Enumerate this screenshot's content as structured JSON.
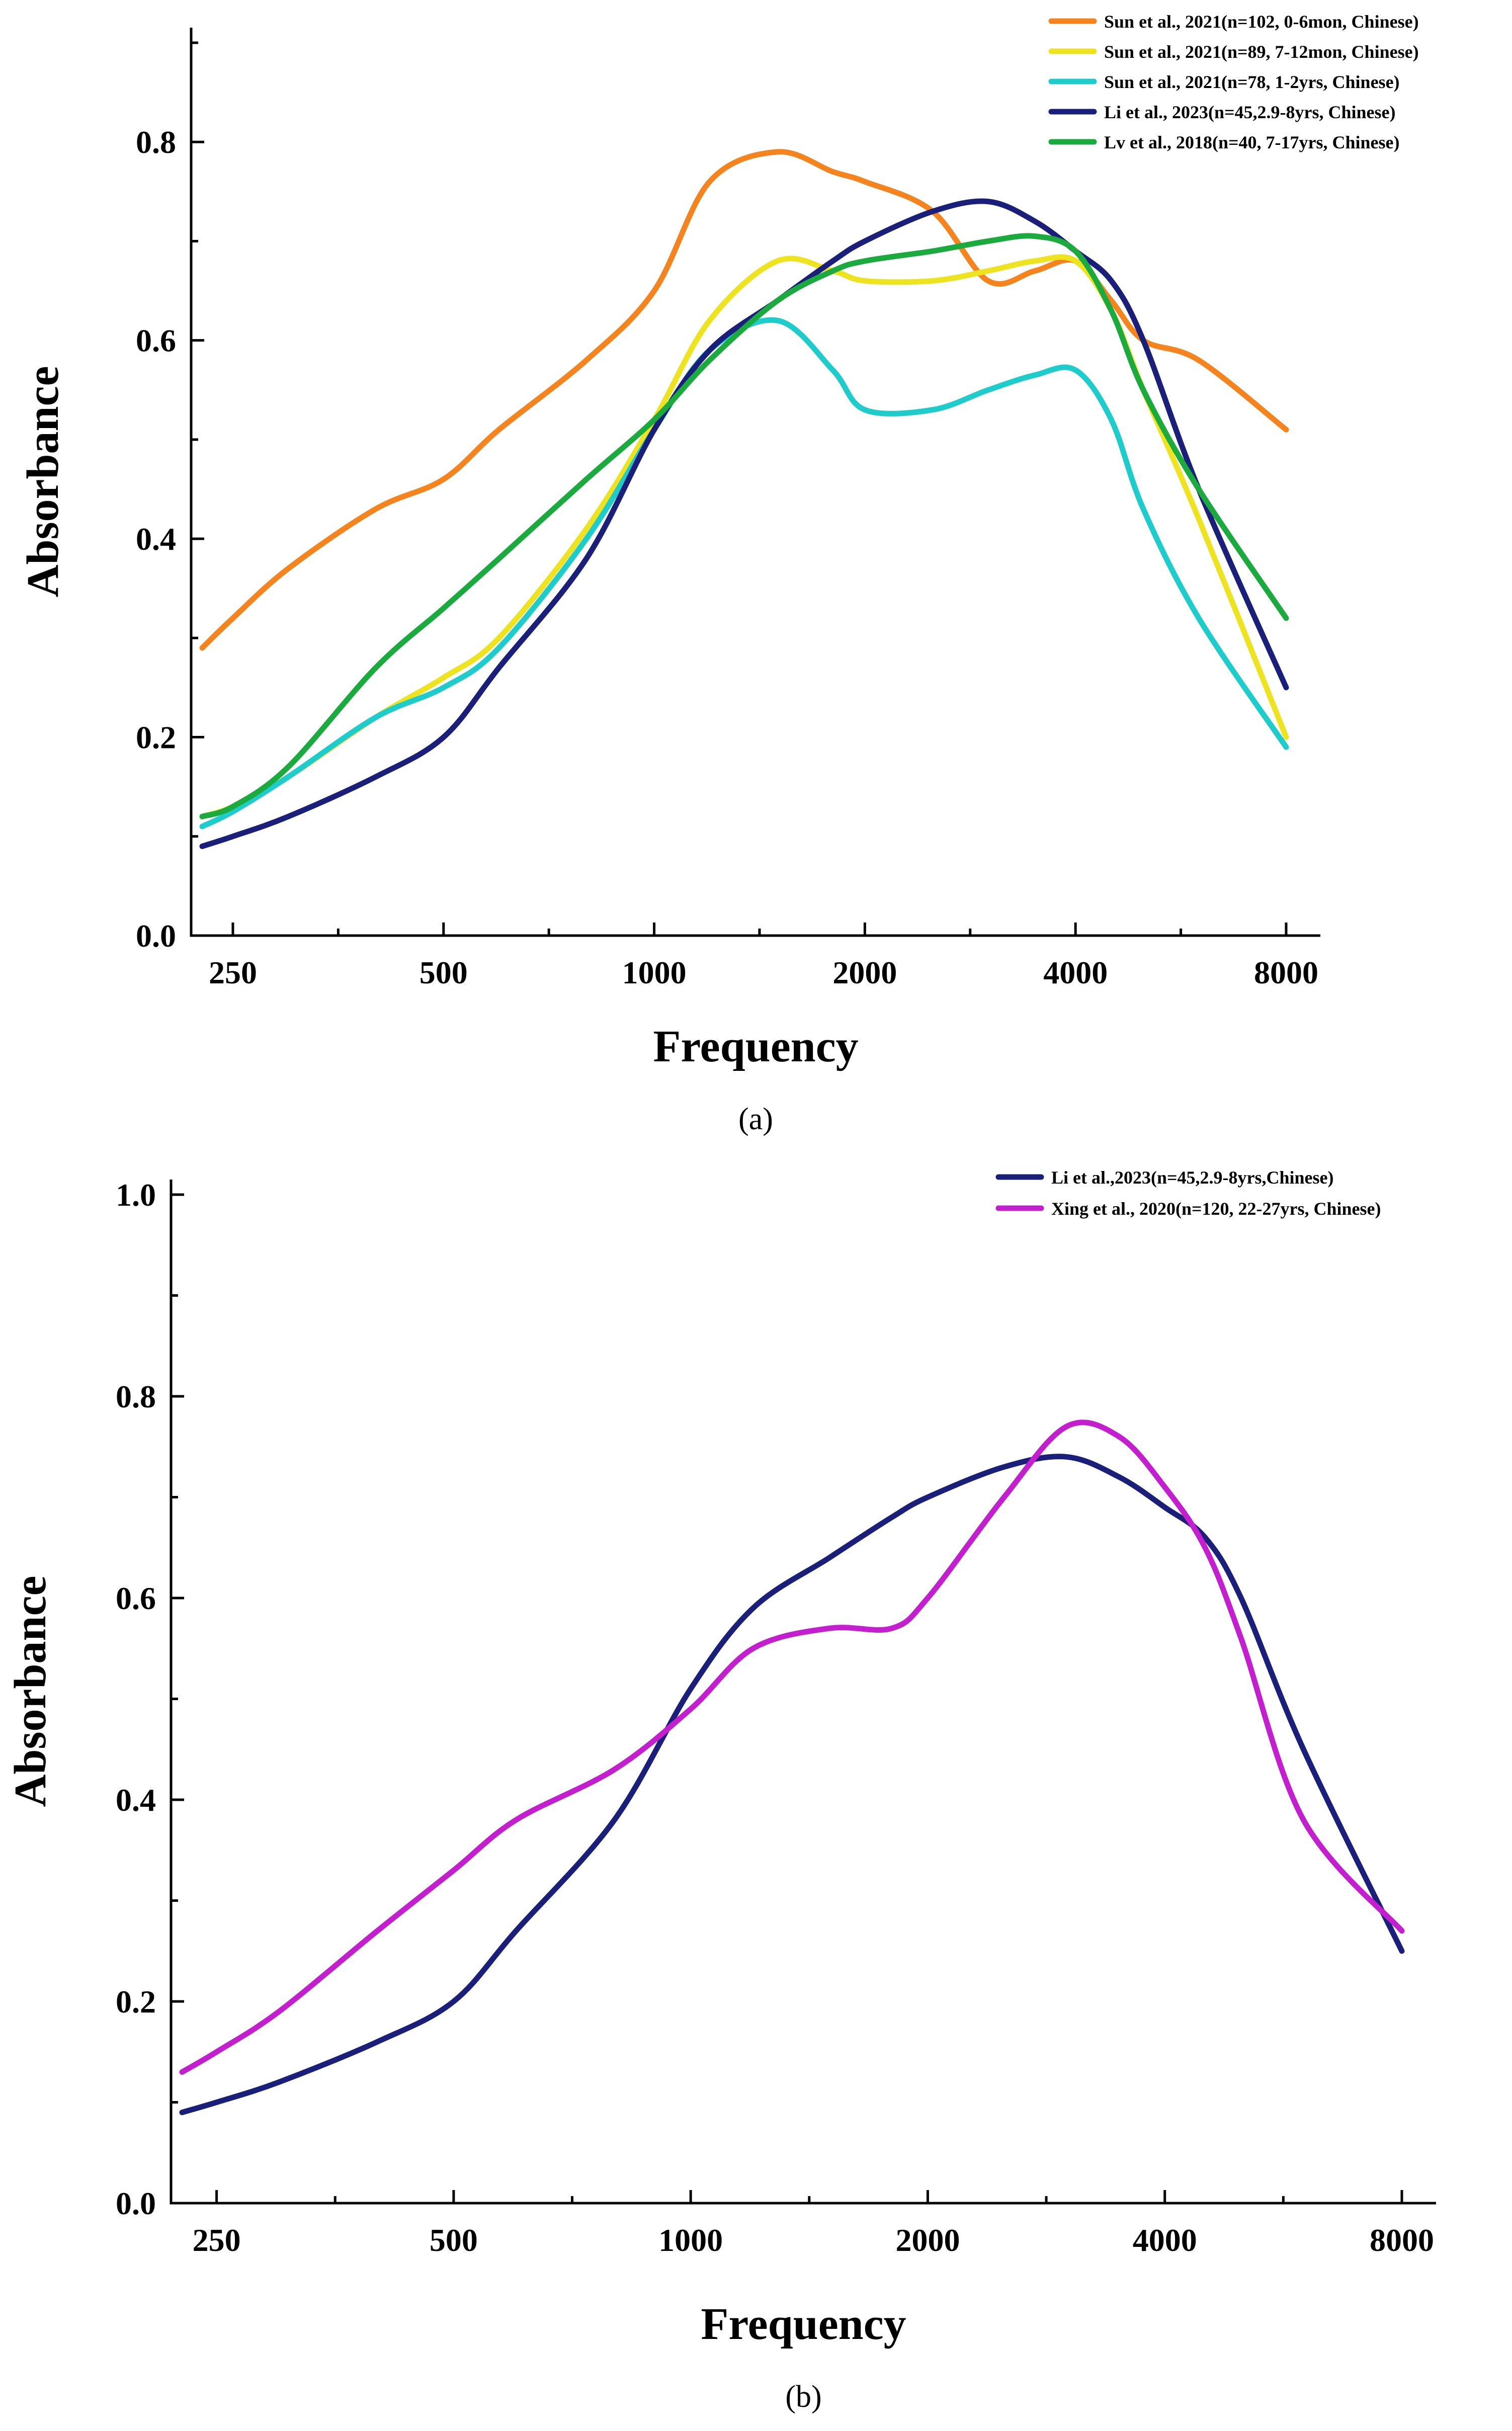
{
  "chart_data": [
    {
      "type": "line",
      "panel_label": "(a)",
      "xlabel": "Frequency",
      "ylabel": "Absorbance",
      "x_scale": "log2",
      "xlim": [
        226,
        8000
      ],
      "ylim": [
        0,
        0.9
      ],
      "x_ticks": [
        250,
        500,
        1000,
        2000,
        4000,
        8000
      ],
      "x_tick_labels": [
        "250",
        "500",
        "1000",
        "2000",
        "4000",
        "8000"
      ],
      "y_ticks": [
        0,
        0.2,
        0.4,
        0.6,
        0.8
      ],
      "y_tick_labels": [
        "0.0",
        "0.2",
        "0.4",
        "0.6",
        "0.8"
      ],
      "legend_position": "top-right",
      "x": [
        226,
        250,
        300,
        400,
        500,
        600,
        800,
        1000,
        1200,
        1500,
        1800,
        2000,
        2500,
        3000,
        3500,
        4000,
        4500,
        5000,
        6000,
        8000
      ],
      "series": [
        {
          "name": "Sun et al., 2021(n=102, 0-6mon, Chinese)",
          "color": "#f5841f",
          "values": [
            0.29,
            0.32,
            0.37,
            0.43,
            0.46,
            0.51,
            0.58,
            0.65,
            0.76,
            0.79,
            0.77,
            0.76,
            0.73,
            0.66,
            0.67,
            0.68,
            0.64,
            0.6,
            0.58,
            0.51
          ]
        },
        {
          "name": "Sun et al., 2021(n=89, 7-12mon, Chinese)",
          "color": "#ede31f",
          "values": [
            0.12,
            0.13,
            0.16,
            0.22,
            0.26,
            0.3,
            0.41,
            0.52,
            0.62,
            0.68,
            0.67,
            0.66,
            0.66,
            0.67,
            0.68,
            0.68,
            0.63,
            0.55,
            0.42,
            0.2
          ]
        },
        {
          "name": "Sun et al., 2021(n=78, 1-2yrs, Chinese)",
          "color": "#1fcccc",
          "values": [
            0.11,
            0.125,
            0.16,
            0.22,
            0.25,
            0.29,
            0.4,
            0.51,
            0.59,
            0.62,
            0.57,
            0.53,
            0.53,
            0.55,
            0.565,
            0.57,
            0.52,
            0.43,
            0.32,
            0.19
          ]
        },
        {
          "name": "Li et al., 2023(n=45,2.9-8yrs, Chinese)",
          "color": "#1a1f7a",
          "values": [
            0.09,
            0.1,
            0.12,
            0.16,
            0.2,
            0.27,
            0.38,
            0.51,
            0.59,
            0.64,
            0.68,
            0.7,
            0.73,
            0.74,
            0.72,
            0.69,
            0.66,
            0.6,
            0.45,
            0.25
          ]
        },
        {
          "name": "Lv et al., 2018(n=40, 7-17yrs, Chinese)",
          "color": "#1aaa3e",
          "values": [
            0.12,
            0.13,
            0.17,
            0.27,
            0.33,
            0.38,
            0.46,
            0.52,
            0.58,
            0.64,
            0.67,
            0.68,
            0.69,
            0.7,
            0.705,
            0.69,
            0.63,
            0.55,
            0.45,
            0.32
          ]
        }
      ]
    },
    {
      "type": "line",
      "panel_label": "(b)",
      "xlabel": "Frequency",
      "ylabel": "Absorbance",
      "x_scale": "log2",
      "xlim": [
        226,
        8000
      ],
      "ylim": [
        0,
        1.0
      ],
      "x_ticks": [
        250,
        500,
        1000,
        2000,
        4000,
        8000
      ],
      "x_tick_labels": [
        "250",
        "500",
        "1000",
        "2000",
        "4000",
        "8000"
      ],
      "y_ticks": [
        0,
        0.2,
        0.4,
        0.6,
        0.8,
        1.0
      ],
      "y_tick_labels": [
        "0.0",
        "0.2",
        "0.4",
        "0.6",
        "0.8",
        "1.0"
      ],
      "legend_position": "top-right",
      "x": [
        226,
        250,
        300,
        400,
        500,
        600,
        800,
        1000,
        1200,
        1500,
        1800,
        2000,
        2500,
        3000,
        3500,
        4000,
        4500,
        5000,
        6000,
        8000
      ],
      "series": [
        {
          "name": "Li et al.,2023(n=45,2.9-8yrs,Chinese)",
          "color": "#1a1f7a",
          "values": [
            0.09,
            0.1,
            0.12,
            0.16,
            0.2,
            0.27,
            0.38,
            0.51,
            0.59,
            0.64,
            0.68,
            0.7,
            0.73,
            0.74,
            0.72,
            0.69,
            0.66,
            0.6,
            0.45,
            0.25
          ]
        },
        {
          "name": "Xing et al., 2020(n=120, 22-27yrs, Chinese)",
          "color": "#c41fcf",
          "values": [
            0.13,
            0.15,
            0.19,
            0.27,
            0.33,
            0.38,
            0.43,
            0.49,
            0.55,
            0.57,
            0.57,
            0.6,
            0.7,
            0.77,
            0.76,
            0.71,
            0.65,
            0.56,
            0.38,
            0.27
          ]
        }
      ]
    }
  ]
}
